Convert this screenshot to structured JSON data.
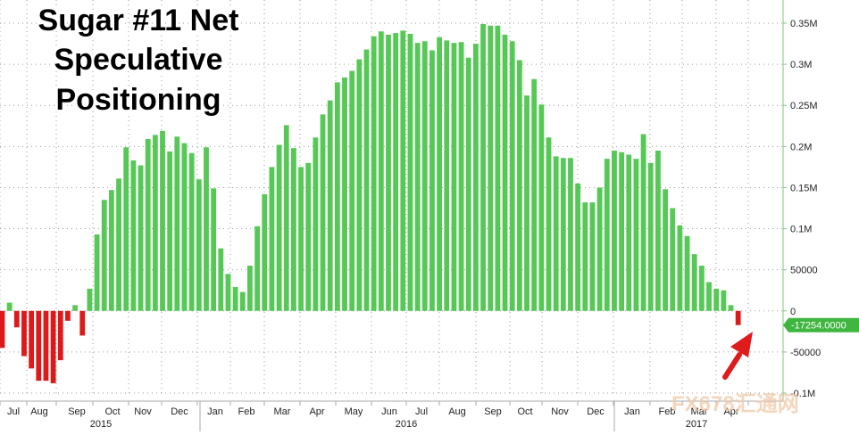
{
  "chart_data": {
    "type": "bar",
    "title_lines": [
      "Sugar #11 Net",
      "Speculative",
      "Positioning"
    ],
    "ylim": [
      -100000,
      350000
    ],
    "y_ticks": [
      {
        "value": 350000,
        "label": "0.35M"
      },
      {
        "value": 300000,
        "label": "0.3M"
      },
      {
        "value": 250000,
        "label": "0.25M"
      },
      {
        "value": 200000,
        "label": "0.2M"
      },
      {
        "value": 150000,
        "label": "0.15M"
      },
      {
        "value": 100000,
        "label": "0.1M"
      },
      {
        "value": 50000,
        "label": "50000"
      },
      {
        "value": 0,
        "label": "0"
      },
      {
        "value": -50000,
        "label": "-50000"
      },
      {
        "value": -100000,
        "label": "-0.1M"
      }
    ],
    "x_month_labels": [
      "Jul",
      "Aug",
      "Sep",
      "Oct",
      "Nov",
      "Dec",
      "Jan",
      "Feb",
      "Mar",
      "Apr",
      "May",
      "Jun",
      "Jul",
      "Aug",
      "Sep",
      "Oct",
      "Nov",
      "Dec",
      "Jan",
      "Feb",
      "Mar",
      "Apr"
    ],
    "year_labels": [
      "2015",
      "2016",
      "2017"
    ],
    "grid": true,
    "last_value_label": "-17254.0000",
    "positive_color": "#55c855",
    "negative_color": "#dd1a1a",
    "axis_color": "#7ec87e",
    "values": [
      -45000,
      10000,
      -20000,
      -55000,
      -70000,
      -85000,
      -85000,
      -88000,
      -60000,
      -12000,
      7000,
      -30000,
      27000,
      93000,
      135000,
      147000,
      161000,
      199000,
      183000,
      177000,
      209000,
      214000,
      219000,
      194000,
      212000,
      204000,
      192000,
      160000,
      199000,
      149000,
      76000,
      45000,
      29000,
      23000,
      55000,
      103000,
      142000,
      175000,
      202000,
      226000,
      198000,
      175000,
      180000,
      211000,
      239000,
      256000,
      278000,
      284000,
      292000,
      306000,
      318000,
      334000,
      340000,
      336000,
      338000,
      341000,
      337000,
      326000,
      328000,
      317000,
      333000,
      329000,
      326000,
      327000,
      308000,
      325000,
      349000,
      347000,
      347000,
      336000,
      328000,
      305000,
      262000,
      282000,
      251000,
      211000,
      188000,
      186000,
      186000,
      155000,
      132000,
      132000,
      150000,
      185000,
      195000,
      193000,
      190000,
      185000,
      215000,
      180000,
      195000,
      148000,
      125000,
      104000,
      91000,
      69000,
      55000,
      35000,
      27000,
      25000,
      7000,
      -17254
    ]
  },
  "watermark": {
    "text": "FX678汇通网"
  }
}
